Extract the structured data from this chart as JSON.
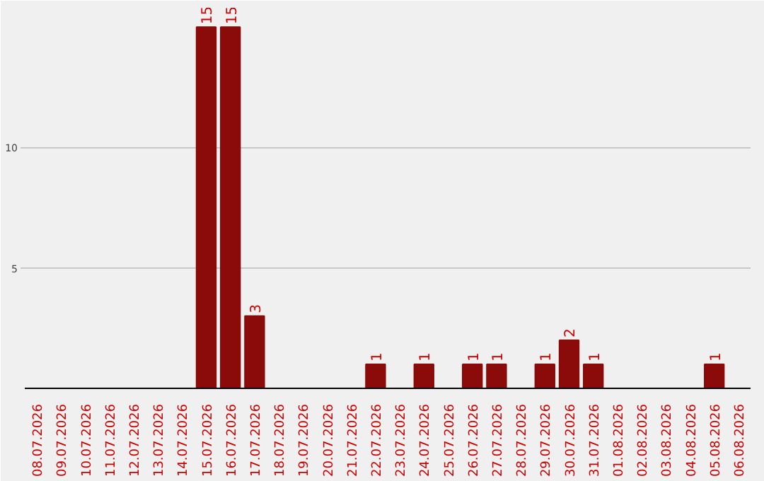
{
  "chart_data": {
    "type": "bar",
    "categories": [
      "08.07.2026",
      "09.07.2026",
      "10.07.2026",
      "11.07.2026",
      "12.07.2026",
      "13.07.2026",
      "14.07.2026",
      "15.07.2026",
      "16.07.2026",
      "17.07.2026",
      "18.07.2026",
      "19.07.2026",
      "20.07.2026",
      "21.07.2026",
      "22.07.2026",
      "23.07.2026",
      "24.07.2026",
      "25.07.2026",
      "26.07.2026",
      "27.07.2026",
      "28.07.2026",
      "29.07.2026",
      "30.07.2026",
      "31.07.2026",
      "01.08.2026",
      "02.08.2026",
      "03.08.2026",
      "04.08.2026",
      "05.08.2026",
      "06.08.2026"
    ],
    "values": [
      0,
      0,
      0,
      0,
      0,
      0,
      0,
      15,
      15,
      3,
      0,
      0,
      0,
      0,
      1,
      0,
      1,
      0,
      1,
      1,
      0,
      1,
      2,
      1,
      0,
      0,
      0,
      0,
      1,
      0
    ],
    "value_labels": [
      null,
      null,
      null,
      null,
      null,
      null,
      null,
      "15",
      "15",
      "3",
      null,
      null,
      null,
      null,
      "1",
      null,
      "1",
      null,
      "1",
      "1",
      null,
      "1",
      "2",
      "1",
      null,
      null,
      null,
      null,
      "1",
      null
    ],
    "color": "#8b0a0a",
    "ylim": [
      0,
      15.8
    ],
    "yticks": [
      5,
      10
    ],
    "grid": "y"
  }
}
